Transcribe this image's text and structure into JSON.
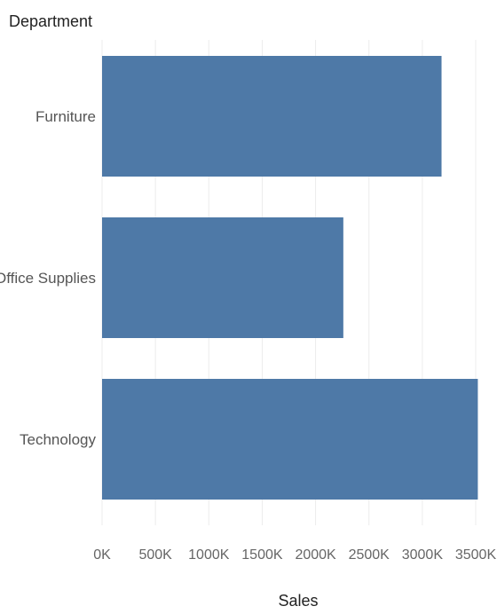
{
  "chart_data": {
    "type": "bar",
    "orientation": "horizontal",
    "header": "Department",
    "categories": [
      "Furniture",
      "Office Supplies",
      "Technology"
    ],
    "values": [
      3180000,
      2260000,
      3520000
    ],
    "xlabel": "Sales",
    "xticks": [
      "0K",
      "500K",
      "1000K",
      "1500K",
      "2000K",
      "2500K",
      "3000K",
      "3500K"
    ],
    "xlim": [
      0,
      3500000
    ],
    "grid": true,
    "bar_color": "#4e79a7"
  }
}
